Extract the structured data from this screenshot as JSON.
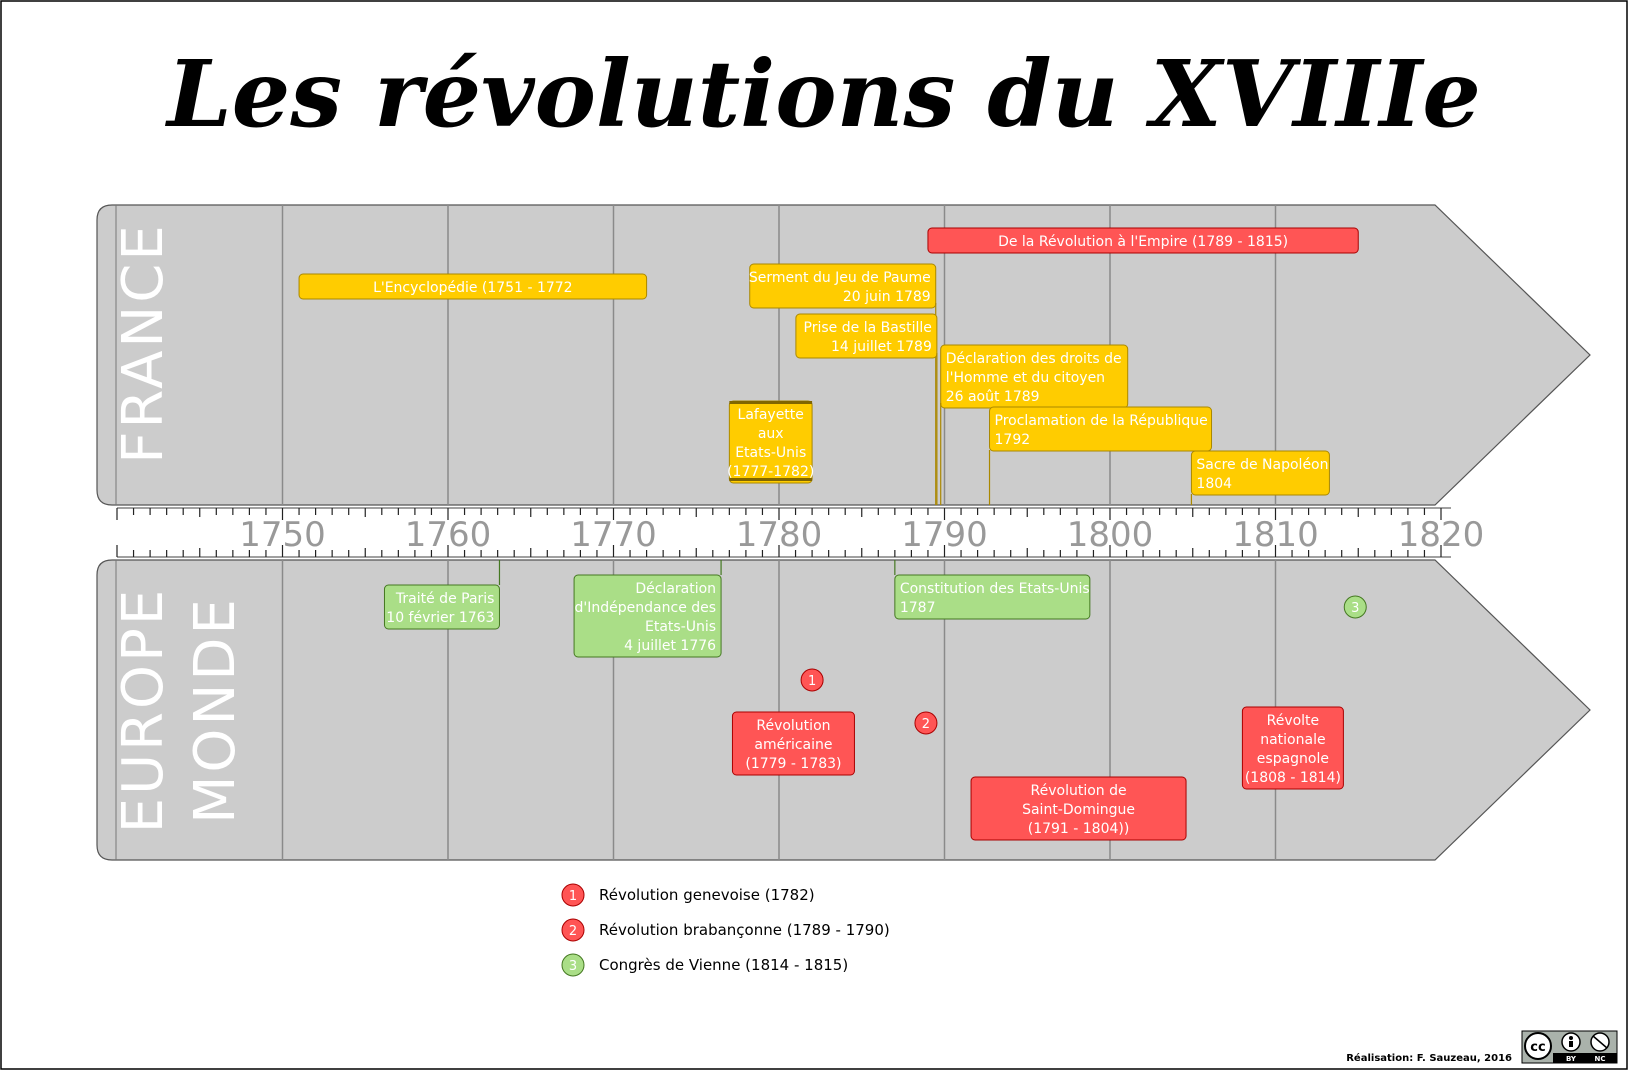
{
  "title": "Les révolutions du XVIIIe",
  "colors": {
    "band": "#cccccc",
    "yellow": "#ffcc00",
    "red": "#ff5555",
    "green": "#aade87",
    "grid": "#8a8a8a",
    "axis_text": "#999999",
    "region_text": "#ffffff"
  },
  "regions": {
    "top": "FRANCE",
    "bottom_line1": "EUROPE",
    "bottom_line2": "MONDE"
  },
  "axis": {
    "start": 1740,
    "end": 1820,
    "labels": [
      "1750",
      "1760",
      "1770",
      "1780",
      "1790",
      "1800",
      "1810",
      "1820"
    ]
  },
  "france_events": [
    {
      "lines": [
        "De la Révolution à l'Empire (1789 - 1815)"
      ],
      "start": 1789,
      "end": 1815,
      "color": "red"
    },
    {
      "lines": [
        "L'Encyclopédie (1751 - 1772"
      ],
      "start": 1751,
      "end": 1772,
      "color": "yellow"
    },
    {
      "lines": [
        "Serment du Jeu de Paume",
        "20 juin 1789"
      ],
      "date": 1789.47,
      "color": "yellow"
    },
    {
      "lines": [
        "Prise de la Bastille",
        "14 juillet 1789"
      ],
      "date": 1789.54,
      "color": "yellow"
    },
    {
      "lines": [
        "Déclaration des droits de",
        "l'Homme et du citoyen",
        "26 août 1789"
      ],
      "date": 1789.65,
      "color": "yellow"
    },
    {
      "lines": [
        "Lafayette",
        "aux",
        "Etats-Unis",
        "(1777-1782)"
      ],
      "start": 1777,
      "end": 1782,
      "color": "yellow"
    },
    {
      "lines": [
        "Proclamation de la République",
        "1792"
      ],
      "date": 1792.72,
      "color": "yellow"
    },
    {
      "lines": [
        "Sacre de Napoléon",
        "1804"
      ],
      "date": 1804.92,
      "color": "yellow"
    }
  ],
  "world_events": [
    {
      "lines": [
        "Traité de Paris",
        "10 février 1763"
      ],
      "date": 1763.11,
      "color": "green"
    },
    {
      "lines": [
        "Déclaration",
        "d'Indépendance des",
        "Etats-Unis",
        "4 juillet 1776"
      ],
      "date": 1776.5,
      "color": "green"
    },
    {
      "lines": [
        "Constitution des Etats-Unis",
        "1787"
      ],
      "date": 1787,
      "color": "green"
    },
    {
      "lines": [
        "Révolution",
        "américaine",
        "(1779 - 1783)"
      ],
      "start": 1779,
      "end": 1783,
      "color": "red"
    },
    {
      "lines": [
        "Révolution de",
        "Saint-Domingue",
        "(1791 - 1804))"
      ],
      "start": 1791,
      "end": 1804,
      "color": "red"
    },
    {
      "lines": [
        "Révolte",
        "nationale",
        "espagnole",
        "(1808 - 1814)"
      ],
      "start": 1808,
      "end": 1814,
      "color": "red"
    }
  ],
  "markers": [
    {
      "num": "1",
      "date": 1782,
      "color": "red"
    },
    {
      "num": "2",
      "date": 1789,
      "color": "red"
    },
    {
      "num": "3",
      "date": 1815,
      "color": "green"
    }
  ],
  "legend": [
    {
      "num": "1",
      "label": "Révolution genevoise (1782)",
      "color": "red"
    },
    {
      "num": "2",
      "label": "Révolution brabançonne (1789 - 1790)",
      "color": "red"
    },
    {
      "num": "3",
      "label": "Congrès de Vienne (1814 - 1815)",
      "color": "green"
    }
  ],
  "credit": "Réalisation: F. Sauzeau, 2016",
  "license": {
    "cc": "cc",
    "by": "BY",
    "nc": "NC"
  }
}
